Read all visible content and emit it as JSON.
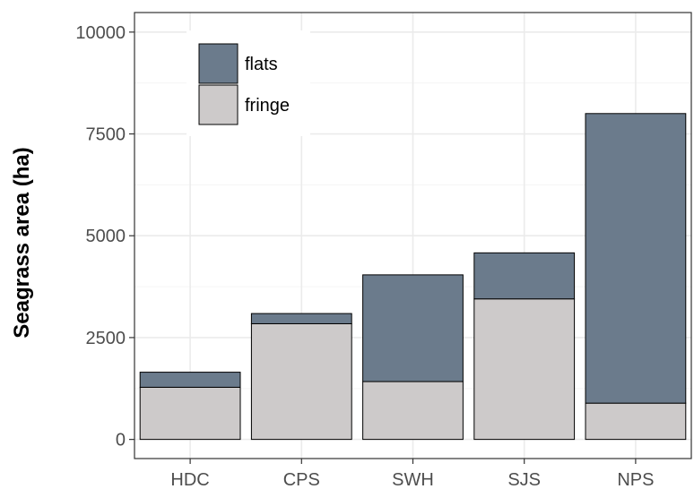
{
  "chart_data": {
    "type": "bar",
    "stacked": true,
    "title": "",
    "xlabel": "",
    "ylabel": "Seagrass area (ha)",
    "categories": [
      "HDC",
      "CPS",
      "SWH",
      "SJS",
      "NPS"
    ],
    "series": [
      {
        "name": "fringe",
        "color": "#cdcaca",
        "values": [
          1280,
          2840,
          1420,
          3450,
          890
        ]
      },
      {
        "name": "flats",
        "color": "#6b7b8c",
        "values": [
          370,
          250,
          2620,
          1130,
          7110
        ]
      }
    ],
    "ylim": [
      -470,
      10480
    ],
    "yticks": [
      0,
      2500,
      5000,
      7500,
      10000
    ],
    "ytick_labels": [
      "0",
      "2500",
      "5000",
      "7500",
      "10000"
    ],
    "legend": {
      "placement": "top-left",
      "order": [
        "flats",
        "fringe"
      ]
    },
    "grid": true,
    "colors": {
      "panel_border": "#333333",
      "grid_major": "#ebebeb",
      "grid_minor": "#f5f5f5",
      "bar_outline": "#000000"
    }
  }
}
